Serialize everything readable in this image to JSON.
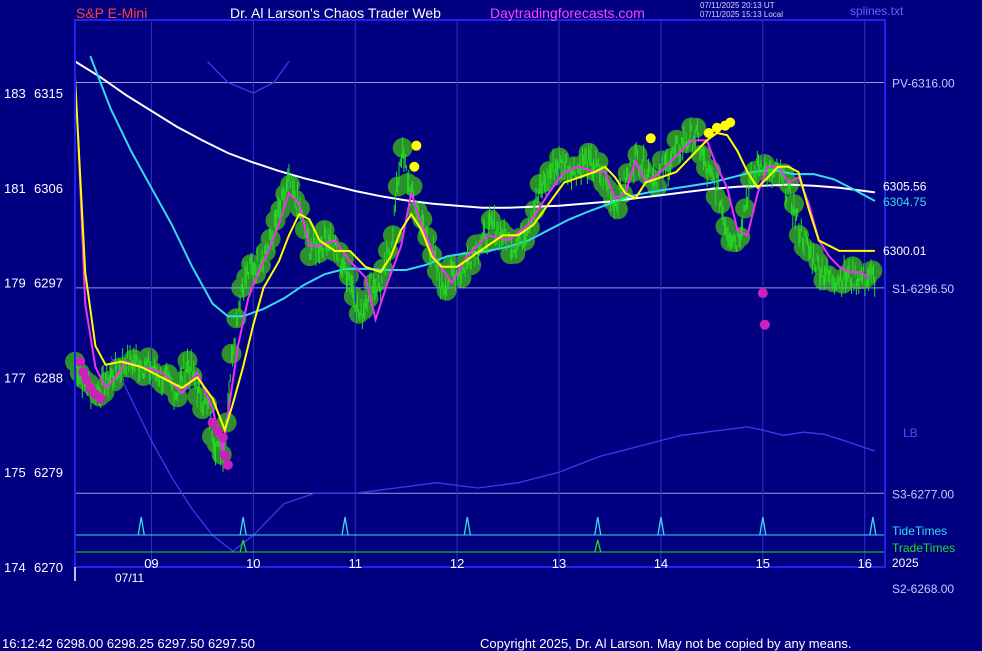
{
  "header": {
    "symbol": "S&P E-Mini",
    "site_title": "Dr. Al Larson's Chaos Trader Web",
    "site_url": "Daytradingforecasts.com",
    "ut_stamp": "07/11/2025 20:13 UT",
    "local_stamp": "07/11/2025 15:13 Local",
    "template_file": "splines.txt"
  },
  "footer": {
    "last_quote": "16:12:42  6298.00 6298.25 6297.50 6297.50",
    "copyright": "Copyright 2025, Dr. Al Larson. May not be copied by any means."
  },
  "colors": {
    "background": "#000080",
    "frame": "#2222ee",
    "price": "#22dd22",
    "glow": "#2d8f2d",
    "spline_yellow": "#ffff00",
    "spline_magenta": "#ee33ee",
    "ma_white": "#ffffff",
    "ma_cyan": "#33ddee",
    "envelope": "#3a3aee",
    "level_line": "#9a9ad6",
    "tide": "#33ddee",
    "trade": "#22dd22",
    "axis_text": "#ffffff",
    "level_text": "#c8c8ff",
    "header_red": "#ff4040",
    "header_white": "#ffffff",
    "header_magenta": "#ff44ff"
  },
  "chart_data": {
    "type": "line",
    "title": "S&P E-Mini",
    "date_label": "07/11",
    "year_label": "2025",
    "x_ticks": [
      "09",
      "10",
      "11",
      "12",
      "13",
      "14",
      "15",
      "16"
    ],
    "y_ticks": [
      {
        "bar": "174",
        "price": 6270
      },
      {
        "bar": "175",
        "price": 6279
      },
      {
        "bar": "177",
        "price": 6288
      },
      {
        "bar": "179",
        "price": 6297
      },
      {
        "bar": "181",
        "price": 6306
      },
      {
        "bar": "183",
        "price": 6315
      }
    ],
    "ylim": [
      6270,
      6317.5
    ],
    "xlim": [
      8.25,
      16.1
    ],
    "levels": [
      {
        "label": "PV-6316.00",
        "price": 6316.0
      },
      {
        "label": "S1-6296.50",
        "price": 6296.5
      },
      {
        "label": "S3-6277.00",
        "price": 6277.0
      },
      {
        "label": "S2-6268.00",
        "price": 6268.0
      }
    ],
    "right_values": [
      {
        "label": "6305.56",
        "price": 6305.56,
        "series": "white_ma"
      },
      {
        "label": "6304.75",
        "price": 6304.75,
        "series": "cyan_ma"
      },
      {
        "label": "6300.01",
        "price": 6300.01,
        "series": "yellow_spline"
      }
    ],
    "band_label": "LB",
    "tide_label": "TideTimes",
    "trade_label": "TradeTimes",
    "tide_times": [
      8.9,
      9.9,
      10.9,
      12.1,
      13.38,
      14.0,
      15.0,
      16.08
    ],
    "trade_times": [
      9.9,
      13.38
    ],
    "price_series": {
      "x": [
        8.25,
        8.35,
        8.45,
        8.55,
        8.65,
        8.75,
        8.85,
        8.95,
        9.05,
        9.15,
        9.25,
        9.35,
        9.45,
        9.55,
        9.62,
        9.7,
        9.75,
        9.8,
        9.88,
        9.95,
        10.05,
        10.15,
        10.25,
        10.35,
        10.45,
        10.55,
        10.65,
        10.75,
        10.85,
        10.95,
        11.05,
        11.15,
        11.25,
        11.35,
        11.45,
        11.55,
        11.65,
        11.75,
        11.85,
        11.95,
        12.05,
        12.15,
        12.25,
        12.35,
        12.45,
        12.55,
        12.65,
        12.75,
        12.85,
        12.95,
        13.05,
        13.15,
        13.25,
        13.35,
        13.45,
        13.55,
        13.65,
        13.75,
        13.85,
        13.95,
        14.05,
        14.15,
        14.25,
        14.35,
        14.45,
        14.55,
        14.65,
        14.75,
        14.85,
        14.95,
        15.0,
        15.05,
        15.15,
        15.25,
        15.35,
        15.45,
        15.55,
        15.65,
        15.75,
        15.85,
        15.95,
        16.05,
        16.1
      ],
      "y": [
        6289.5,
        6287.5,
        6286.5,
        6287.5,
        6288.5,
        6289.5,
        6289.5,
        6289.0,
        6288.5,
        6287.5,
        6286.5,
        6289.5,
        6287.0,
        6285.0,
        6282.0,
        6280.5,
        6286.0,
        6291.0,
        6296.5,
        6298.0,
        6299.0,
        6300.5,
        6303.5,
        6306.5,
        6304.0,
        6300.5,
        6300.5,
        6301.5,
        6299.0,
        6297.5,
        6293.5,
        6297.0,
        6296.5,
        6300.5,
        6309.5,
        6305.5,
        6302.5,
        6300.0,
        6296.5,
        6298.0,
        6298.0,
        6300.0,
        6301.0,
        6302.5,
        6301.5,
        6300.5,
        6301.5,
        6304.0,
        6306.5,
        6308.0,
        6308.5,
        6307.5,
        6308.5,
        6308.0,
        6307.0,
        6304.5,
        6306.5,
        6309.0,
        6308.0,
        6307.0,
        6308.0,
        6309.5,
        6310.5,
        6311.0,
        6307.5,
        6306.0,
        6302.0,
        6301.0,
        6305.5,
        6308.0,
        6308.5,
        6307.0,
        6307.5,
        6305.5,
        6302.5,
        6300.0,
        6298.5,
        6297.5,
        6297.5,
        6297.5,
        6297.5,
        6297.5,
        6297.5
      ]
    },
    "series": [
      {
        "key": "white_ma",
        "x": [
          8.25,
          8.5,
          8.75,
          9.0,
          9.25,
          9.5,
          9.75,
          10.0,
          10.25,
          10.5,
          10.75,
          11.0,
          11.25,
          11.5,
          11.75,
          12.0,
          12.25,
          12.5,
          12.75,
          13.0,
          13.25,
          13.5,
          13.75,
          14.0,
          14.25,
          14.5,
          14.75,
          15.0,
          15.25,
          15.5,
          15.75,
          16.0,
          16.1
        ],
        "y": [
          6318.0,
          6316.5,
          6314.8,
          6313.3,
          6311.8,
          6310.5,
          6309.3,
          6308.4,
          6307.6,
          6306.9,
          6306.3,
          6305.7,
          6305.2,
          6304.8,
          6304.5,
          6304.3,
          6304.1,
          6304.1,
          6304.2,
          6304.3,
          6304.5,
          6304.7,
          6305.0,
          6305.3,
          6305.6,
          6305.9,
          6306.1,
          6306.2,
          6306.3,
          6306.2,
          6306.0,
          6305.7,
          6305.56
        ]
      },
      {
        "key": "cyan_ma",
        "x": [
          8.4,
          8.6,
          8.8,
          9.0,
          9.2,
          9.4,
          9.6,
          9.75,
          9.9,
          10.1,
          10.3,
          10.5,
          10.7,
          10.9,
          11.1,
          11.3,
          11.5,
          11.7,
          11.9,
          12.1,
          12.3,
          12.5,
          12.7,
          12.9,
          13.1,
          13.3,
          13.5,
          13.7,
          13.9,
          14.1,
          14.3,
          14.5,
          14.7,
          14.9,
          15.1,
          15.3,
          15.5,
          15.7,
          15.9,
          16.1
        ],
        "y": [
          6318.5,
          6313.5,
          6309.5,
          6306.0,
          6302.5,
          6298.5,
          6295.0,
          6293.8,
          6293.8,
          6294.5,
          6295.5,
          6296.8,
          6297.8,
          6298.3,
          6298.3,
          6298.2,
          6298.2,
          6298.7,
          6299.5,
          6299.8,
          6300.0,
          6300.4,
          6301.0,
          6302.0,
          6303.0,
          6303.8,
          6304.5,
          6305.2,
          6305.6,
          6305.9,
          6306.2,
          6306.5,
          6307.0,
          6307.5,
          6307.7,
          6307.3,
          6307.3,
          6306.8,
          6305.8,
          6304.75
        ]
      },
      {
        "key": "yellow_spline",
        "x": [
          8.25,
          8.35,
          8.45,
          8.55,
          8.7,
          8.9,
          9.1,
          9.3,
          9.45,
          9.6,
          9.72,
          9.8,
          9.9,
          10.0,
          10.1,
          10.25,
          10.35,
          10.45,
          10.55,
          10.65,
          10.8,
          10.95,
          11.1,
          11.25,
          11.35,
          11.45,
          11.55,
          11.65,
          11.75,
          11.85,
          12.0,
          12.15,
          12.3,
          12.45,
          12.6,
          12.75,
          12.9,
          13.05,
          13.2,
          13.35,
          13.45,
          13.55,
          13.65,
          13.75,
          13.85,
          14.0,
          14.15,
          14.3,
          14.45,
          14.55,
          14.65,
          14.75,
          14.85,
          14.95,
          15.05,
          15.15,
          15.25,
          15.35,
          15.45,
          15.55,
          15.65,
          15.75,
          15.85,
          15.95,
          16.05,
          16.1
        ],
        "y": [
          6316.5,
          6298.0,
          6291.0,
          6289.2,
          6289.5,
          6289.0,
          6288.0,
          6287.0,
          6288.0,
          6286.0,
          6283.0,
          6285.5,
          6289.0,
          6293.0,
          6296.5,
          6299.0,
          6301.5,
          6303.5,
          6303.0,
          6301.0,
          6300.0,
          6300.0,
          6298.5,
          6298.0,
          6299.5,
          6302.0,
          6303.5,
          6302.0,
          6299.5,
          6298.5,
          6298.5,
          6299.5,
          6300.5,
          6301.5,
          6301.5,
          6302.5,
          6304.5,
          6306.5,
          6307.0,
          6307.5,
          6308.0,
          6307.0,
          6305.5,
          6305.0,
          6306.5,
          6307.0,
          6307.5,
          6309.0,
          6310.5,
          6311.2,
          6311.0,
          6309.5,
          6307.5,
          6306.0,
          6307.0,
          6308.0,
          6308.0,
          6307.5,
          6304.0,
          6301.0,
          6300.5,
          6300.01,
          6300.01,
          6300.01,
          6300.01,
          6300.01
        ]
      },
      {
        "key": "magenta_spline",
        "x": [
          8.28,
          8.35,
          8.45,
          8.55,
          8.65,
          8.75,
          8.9,
          9.1,
          9.3,
          9.45,
          9.6,
          9.7,
          9.75,
          9.85,
          9.95,
          10.05,
          10.15,
          10.25,
          10.35,
          10.45,
          10.55,
          10.65,
          10.8,
          10.95,
          11.1,
          11.2,
          11.3,
          11.45,
          11.55,
          11.65,
          11.8,
          11.95,
          12.1,
          12.3,
          12.5,
          12.7,
          12.9,
          13.05,
          13.2,
          13.35,
          13.45,
          13.55,
          13.65,
          13.75,
          13.85,
          14.0,
          14.15,
          14.3,
          14.45,
          14.55,
          14.65,
          14.75,
          14.85,
          14.95,
          15.05,
          15.15,
          15.25,
          15.35,
          15.45,
          15.55,
          15.65,
          15.75,
          15.85,
          15.95,
          16.05
        ],
        "y": [
          6311.0,
          6295.0,
          6289.0,
          6287.0,
          6288.0,
          6289.5,
          6289.0,
          6288.5,
          6286.5,
          6288.5,
          6285.0,
          6281.0,
          6284.5,
          6291.0,
          6295.5,
          6298.0,
          6300.0,
          6302.5,
          6305.5,
          6304.5,
          6300.5,
          6300.5,
          6301.0,
          6299.0,
          6297.5,
          6293.5,
          6296.5,
          6300.5,
          6305.5,
          6302.5,
          6299.0,
          6297.0,
          6299.5,
          6301.5,
          6301.0,
          6302.5,
          6305.5,
          6307.5,
          6308.0,
          6307.5,
          6307.5,
          6305.0,
          6305.5,
          6308.5,
          6306.5,
          6307.5,
          6309.0,
          6310.5,
          6310.5,
          6308.0,
          6306.0,
          6302.0,
          6301.5,
          6305.5,
          6308.0,
          6308.0,
          6306.5,
          6307.0,
          6304.5,
          6301.0,
          6299.5,
          6298.5,
          6298.0,
          6298.0,
          6297.5
        ]
      },
      {
        "key": "band_upper",
        "x": [
          9.55,
          9.75,
          10.0,
          10.2,
          10.35
        ],
        "y": [
          6318.0,
          6316.0,
          6315.0,
          6316.0,
          6318.0
        ]
      },
      {
        "key": "band_lower",
        "x": [
          8.6,
          8.8,
          9.0,
          9.2,
          9.4,
          9.6,
          9.8,
          10.0,
          10.3,
          10.6,
          11.0,
          11.4,
          11.8,
          12.2,
          12.6,
          13.0,
          13.4,
          13.8,
          14.2,
          14.6,
          14.85,
          15.0,
          15.2,
          15.4,
          15.6,
          15.8,
          16.1
        ],
        "y": [
          6290.0,
          6286.0,
          6282.0,
          6278.5,
          6275.5,
          6273.0,
          6271.5,
          6273.0,
          6276.0,
          6277.0,
          6277.0,
          6277.5,
          6278.0,
          6277.5,
          6278.0,
          6279.0,
          6280.5,
          6281.5,
          6282.5,
          6283.0,
          6283.3,
          6283.0,
          6282.5,
          6282.8,
          6282.6,
          6282.0,
          6281.0
        ]
      }
    ],
    "yellow_dots": [
      {
        "x": 11.6,
        "y": 6310.0
      },
      {
        "x": 11.58,
        "y": 6308.0
      },
      {
        "x": 13.9,
        "y": 6310.7
      },
      {
        "x": 14.47,
        "y": 6311.2
      },
      {
        "x": 14.55,
        "y": 6311.7
      },
      {
        "x": 14.63,
        "y": 6311.9
      },
      {
        "x": 14.68,
        "y": 6312.2
      }
    ],
    "magenta_dots": [
      {
        "x": 8.3,
        "y": 6289.5
      },
      {
        "x": 8.33,
        "y": 6288.5
      },
      {
        "x": 8.36,
        "y": 6287.8
      },
      {
        "x": 8.4,
        "y": 6287.0
      },
      {
        "x": 8.45,
        "y": 6286.4
      },
      {
        "x": 8.5,
        "y": 6286.0
      },
      {
        "x": 9.6,
        "y": 6283.7
      },
      {
        "x": 9.65,
        "y": 6282.9
      },
      {
        "x": 9.7,
        "y": 6282.3
      },
      {
        "x": 9.72,
        "y": 6280.6
      },
      {
        "x": 9.75,
        "y": 6279.7
      },
      {
        "x": 15.0,
        "y": 6296.0
      },
      {
        "x": 15.02,
        "y": 6293.0
      }
    ]
  }
}
